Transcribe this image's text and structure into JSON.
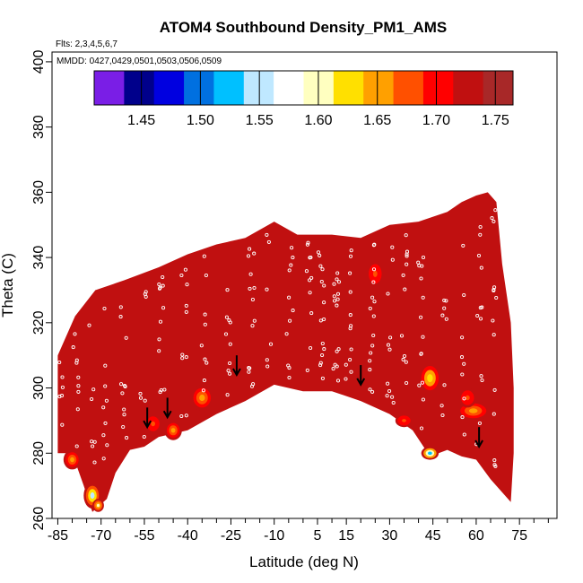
{
  "chart_data": {
    "type": "heatmap",
    "title": "ATOM4 Southbound Density_PM1_AMS",
    "flights_note": "Flts: 2,3,4,5,6,7",
    "dates_note": "MMDD: 0427,0429,0501,0503,0506,0509",
    "xlabel": "Latitude (deg N)",
    "ylabel": "Theta (C)",
    "xlim": [
      -87,
      88
    ],
    "ylim": [
      260,
      403
    ],
    "x_ticks": [
      -85,
      -70,
      -55,
      -40,
      -25,
      -10,
      5,
      15,
      30,
      45,
      60,
      75
    ],
    "x_minor_ticks": [
      -80,
      -75,
      -65,
      -60,
      -50,
      -45,
      -35,
      -30,
      -20,
      -15,
      -5,
      0,
      10,
      20,
      25,
      35,
      40,
      50,
      55,
      65,
      70,
      80,
      85
    ],
    "y_ticks": [
      260,
      280,
      300,
      320,
      340,
      360,
      380,
      400
    ],
    "colorbar": {
      "min": 1.41,
      "max": 1.765,
      "ticks": [
        1.45,
        1.5,
        1.55,
        1.6,
        1.65,
        1.7,
        1.75
      ],
      "tick_labels": [
        "1.45",
        "1.50",
        "1.55",
        "1.60",
        "1.65",
        "1.70",
        "1.75"
      ],
      "colors": [
        "#7a1ee6",
        "#00008b",
        "#0000e0",
        "#0070e0",
        "#00c0ff",
        "#bfe8ff",
        "#ffffff",
        "#ffffc0",
        "#ffe000",
        "#ffa000",
        "#ff5000",
        "#ff0000",
        "#c01010",
        "#a82828"
      ]
    },
    "background_value": 1.73,
    "top_boundary": [
      [
        -85,
        310
      ],
      [
        -79,
        322
      ],
      [
        -72,
        330
      ],
      [
        -62,
        333
      ],
      [
        -50,
        337
      ],
      [
        -40,
        341
      ],
      [
        -30,
        344
      ],
      [
        -20,
        346
      ],
      [
        -10,
        351
      ],
      [
        -2,
        347
      ],
      [
        10,
        347
      ],
      [
        20,
        346
      ],
      [
        30,
        350
      ],
      [
        40,
        351
      ],
      [
        50,
        354
      ],
      [
        55,
        357
      ],
      [
        60,
        359
      ],
      [
        64,
        360
      ],
      [
        67,
        357
      ],
      [
        69,
        338
      ],
      [
        72,
        320
      ],
      [
        73,
        300
      ],
      [
        73,
        280
      ],
      [
        72,
        265
      ]
    ],
    "bottom_boundary": [
      [
        -85,
        280
      ],
      [
        -80,
        280
      ],
      [
        -76,
        270
      ],
      [
        -73,
        262
      ],
      [
        -68,
        266
      ],
      [
        -65,
        274
      ],
      [
        -60,
        281
      ],
      [
        -55,
        282
      ],
      [
        -50,
        285
      ],
      [
        -45,
        286
      ],
      [
        -40,
        287
      ],
      [
        -30,
        292
      ],
      [
        -20,
        296
      ],
      [
        -10,
        301
      ],
      [
        0,
        299
      ],
      [
        10,
        299
      ],
      [
        20,
        296
      ],
      [
        30,
        292
      ],
      [
        38,
        287
      ],
      [
        44,
        279
      ],
      [
        50,
        281
      ],
      [
        55,
        279
      ],
      [
        60,
        278
      ],
      [
        65,
        272
      ],
      [
        72,
        265
      ]
    ],
    "hotspots": [
      {
        "lat": -73,
        "theta": 267,
        "value": 1.56,
        "r": [
          3,
          4
        ]
      },
      {
        "lat": -71,
        "theta": 264,
        "value": 1.6,
        "r": [
          2,
          2
        ]
      },
      {
        "lat": -80,
        "theta": 278,
        "value": 1.66,
        "r": [
          3,
          3
        ]
      },
      {
        "lat": -35,
        "theta": 297,
        "value": 1.66,
        "r": [
          4,
          4
        ]
      },
      {
        "lat": -45,
        "theta": 287,
        "value": 1.65,
        "r": [
          3,
          3
        ]
      },
      {
        "lat": -52,
        "theta": 289,
        "value": 1.68,
        "r": [
          3,
          3
        ]
      },
      {
        "lat": 25,
        "theta": 335,
        "value": 1.67,
        "r": [
          3,
          4
        ]
      },
      {
        "lat": 44,
        "theta": 303,
        "value": 1.63,
        "r": [
          4,
          5
        ]
      },
      {
        "lat": 59,
        "theta": 293,
        "value": 1.64,
        "r": [
          6,
          3
        ]
      },
      {
        "lat": 44,
        "theta": 280,
        "value": 1.52,
        "r": [
          3,
          2
        ]
      },
      {
        "lat": 57,
        "theta": 297,
        "value": 1.68,
        "r": [
          3,
          3
        ]
      },
      {
        "lat": 35,
        "theta": 290,
        "value": 1.68,
        "r": [
          3,
          2
        ]
      }
    ],
    "arrows": [
      [
        -54,
        288
      ],
      [
        -47,
        291
      ],
      [
        -23,
        304
      ],
      [
        20,
        301
      ],
      [
        61,
        282
      ]
    ]
  }
}
